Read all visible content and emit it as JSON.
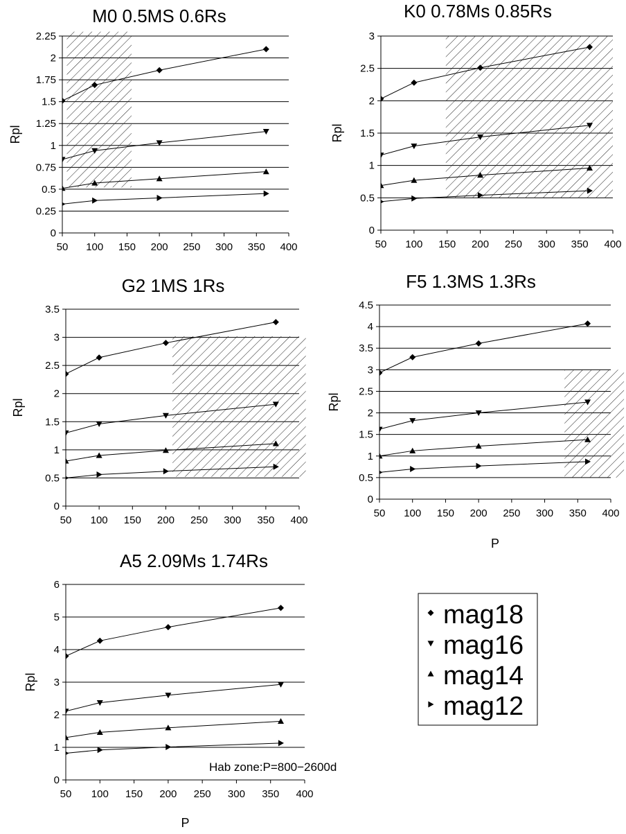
{
  "series_names": [
    "mag18",
    "mag16",
    "mag14",
    "mag12"
  ],
  "marker_shapes": [
    "diamond",
    "triangle-down",
    "triangle-up",
    "triangle-right"
  ],
  "note": "Hab zone:P=800−2600d",
  "chart_data": [
    {
      "type": "line",
      "title": "M0 0.5MS 0.6Rs",
      "xlabel": "",
      "ylabel": "Rpl",
      "x": [
        50,
        100,
        200,
        365
      ],
      "xlim": [
        50,
        400
      ],
      "xticks": [
        50,
        100,
        150,
        200,
        250,
        300,
        350,
        400
      ],
      "ylim": [
        0,
        2.25
      ],
      "yticks": [
        "0",
        "0.25",
        "0.5",
        "0.75",
        "1",
        "1.25",
        "1.5",
        "1.75",
        "2",
        "2.25"
      ],
      "hatch": {
        "x": [
          57,
          157
        ],
        "y": [
          0.52,
          2.3
        ]
      },
      "series": [
        {
          "name": "mag18",
          "values": [
            1.51,
            1.69,
            1.86,
            2.1
          ]
        },
        {
          "name": "mag16",
          "values": [
            0.84,
            0.94,
            1.03,
            1.16
          ]
        },
        {
          "name": "mag14",
          "values": [
            0.51,
            0.57,
            0.62,
            0.7
          ]
        },
        {
          "name": "mag12",
          "values": [
            0.33,
            0.37,
            0.4,
            0.45
          ]
        }
      ]
    },
    {
      "type": "line",
      "title": "K0 0.78Ms 0.85Rs",
      "xlabel": "",
      "ylabel": "Rpl",
      "x": [
        50,
        100,
        200,
        365
      ],
      "xlim": [
        50,
        400
      ],
      "xticks": [
        50,
        100,
        150,
        200,
        250,
        300,
        350,
        400
      ],
      "ylim": [
        0,
        3
      ],
      "yticks": [
        "0",
        "0.5",
        "1",
        "1.5",
        "2",
        "2.5",
        "3"
      ],
      "hatch": {
        "x": [
          148,
          400
        ],
        "y": [
          0.5,
          3
        ]
      },
      "series": [
        {
          "name": "mag18",
          "values": [
            2.03,
            2.28,
            2.51,
            2.83
          ]
        },
        {
          "name": "mag16",
          "values": [
            1.16,
            1.3,
            1.44,
            1.62
          ]
        },
        {
          "name": "mag14",
          "values": [
            0.69,
            0.77,
            0.85,
            0.96
          ]
        },
        {
          "name": "mag12",
          "values": [
            0.44,
            0.49,
            0.54,
            0.61
          ]
        }
      ]
    },
    {
      "type": "line",
      "title": "G2 1MS 1Rs",
      "xlabel": "",
      "ylabel": "Rpl",
      "x": [
        50,
        100,
        200,
        365
      ],
      "xlim": [
        50,
        400
      ],
      "xticks": [
        50,
        100,
        150,
        200,
        250,
        300,
        350,
        400
      ],
      "ylim": [
        0,
        3.5
      ],
      "yticks": [
        "0",
        "0.5",
        "1",
        "1.5",
        "2",
        "2.5",
        "3",
        "3.5"
      ],
      "hatch": {
        "x": [
          210,
          410
        ],
        "y": [
          0.52,
          3.02
        ]
      },
      "series": [
        {
          "name": "mag18",
          "values": [
            2.35,
            2.64,
            2.9,
            3.27
          ]
        },
        {
          "name": "mag16",
          "values": [
            1.3,
            1.46,
            1.61,
            1.81
          ]
        },
        {
          "name": "mag14",
          "values": [
            0.8,
            0.9,
            0.99,
            1.11
          ]
        },
        {
          "name": "mag12",
          "values": [
            0.5,
            0.56,
            0.62,
            0.7
          ]
        }
      ]
    },
    {
      "type": "line",
      "title": "F5 1.3MS 1.3Rs",
      "xlabel": "P",
      "ylabel": "Rpl",
      "x": [
        50,
        100,
        200,
        365
      ],
      "xlim": [
        50,
        400
      ],
      "xticks": [
        50,
        100,
        150,
        200,
        250,
        300,
        350,
        400
      ],
      "ylim": [
        0,
        4.5
      ],
      "yticks": [
        "0",
        "0.5",
        "1",
        "1.5",
        "2",
        "2.5",
        "3",
        "3.5",
        "4",
        "4.5"
      ],
      "hatch": {
        "x": [
          330,
          420
        ],
        "y": [
          0.5,
          3
        ]
      },
      "series": [
        {
          "name": "mag18",
          "values": [
            2.93,
            3.29,
            3.61,
            4.07
          ]
        },
        {
          "name": "mag16",
          "values": [
            1.62,
            1.82,
            2.0,
            2.25
          ]
        },
        {
          "name": "mag14",
          "values": [
            1.0,
            1.12,
            1.23,
            1.38
          ]
        },
        {
          "name": "mag12",
          "values": [
            0.62,
            0.7,
            0.77,
            0.87
          ]
        }
      ]
    },
    {
      "type": "line",
      "title": "A5 2.09Ms 1.74Rs",
      "xlabel": "P",
      "ylabel": "Rpl",
      "x": [
        50,
        100,
        200,
        365
      ],
      "xlim": [
        50,
        400
      ],
      "xticks": [
        50,
        100,
        150,
        200,
        250,
        300,
        350,
        400
      ],
      "ylim": [
        0,
        6
      ],
      "yticks": [
        "0",
        "1",
        "2",
        "3",
        "4",
        "5",
        "6"
      ],
      "series": [
        {
          "name": "mag18",
          "values": [
            3.8,
            4.27,
            4.69,
            5.28
          ]
        },
        {
          "name": "mag16",
          "values": [
            2.11,
            2.37,
            2.6,
            2.93
          ]
        },
        {
          "name": "mag14",
          "values": [
            1.3,
            1.46,
            1.6,
            1.8
          ]
        },
        {
          "name": "mag12",
          "values": [
            0.82,
            0.92,
            1.01,
            1.13
          ]
        }
      ]
    }
  ]
}
